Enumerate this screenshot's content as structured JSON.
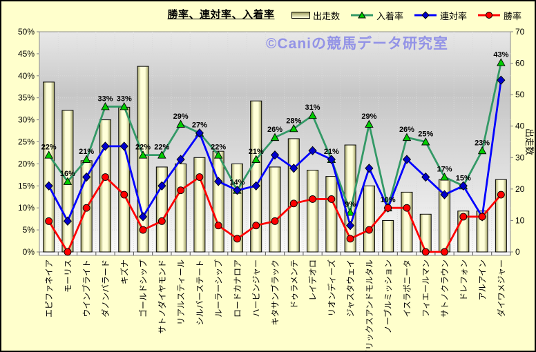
{
  "watermark": "©Caniの競馬データ研究室",
  "colors": {
    "background": "#ffffcc",
    "plot_top": "#e8e8e8",
    "plot_mid": "#c6c6c6",
    "plot_bottom": "#fafafa",
    "bar_fill_light": "#ffffd9",
    "bar_fill_dark": "#9f9f63",
    "bar_border": "#000000",
    "placing_line": "#339966",
    "placing_marker": "#00cc00",
    "quinella_line": "#0000ff",
    "quinella_marker": "#0000cc",
    "win_line": "#ff0000",
    "win_marker": "#ff0000",
    "watermark": "#9393e6"
  },
  "chart_data": {
    "type": "combo-bar-line",
    "title": "勝率、連対率、入着率",
    "categories": [
      "エピファネイア",
      "モーリス",
      "ウインブライト",
      "ダノンバラード",
      "キズナ",
      "ゴールドシップ",
      "サトノダイヤモンド",
      "リアルスティール",
      "シルバーステート",
      "ルーラーシップ",
      "ロードカナロア",
      "ハービンジャー",
      "キタサンブラック",
      "ドゥラメンテ",
      "レイデオロ",
      "リオンディーズ",
      "ジャスタウェイ",
      "ブリックスアンドモルタル",
      "ノーブルミッション",
      "イスラボニータ",
      "フィエールマン",
      "サトノクラウン",
      "ドレフォン",
      "アルアイン",
      "ダイワメジャー"
    ],
    "series": [
      {
        "name": "出走数",
        "id": "starts",
        "chart": "bar",
        "axis": "right",
        "values": [
          54,
          45,
          29,
          42,
          46,
          59,
          27,
          28,
          30,
          32,
          28,
          48,
          27,
          36,
          26,
          24,
          34,
          21,
          10,
          19,
          12,
          23,
          13,
          13,
          23
        ]
      },
      {
        "name": "入着率",
        "id": "placing-rate",
        "chart": "line",
        "marker": "triangle",
        "axis": "left",
        "data_labels": "percent",
        "values": [
          22,
          16,
          21,
          33,
          33,
          22,
          22,
          29,
          27,
          22,
          14,
          21,
          26,
          28,
          31,
          21,
          9,
          29,
          10,
          26,
          25,
          17,
          15,
          23,
          43
        ]
      },
      {
        "name": "連対率",
        "id": "quinella-rate",
        "chart": "line",
        "marker": "diamond",
        "axis": "left",
        "values": [
          15,
          7,
          17,
          24,
          24,
          8,
          15,
          21,
          27,
          16,
          14,
          15,
          22,
          19,
          23,
          21,
          6,
          19,
          10,
          21,
          17,
          13,
          15,
          8,
          39
        ]
      },
      {
        "name": "勝率",
        "id": "win-rate",
        "chart": "line",
        "marker": "circle",
        "axis": "left",
        "values": [
          7,
          0,
          10,
          17,
          13,
          5,
          7,
          14,
          17,
          6,
          3,
          6,
          7,
          11,
          12,
          12,
          3,
          5,
          10,
          10,
          0,
          0,
          8,
          8,
          13
        ]
      }
    ],
    "left_axis": {
      "min": 0,
      "max": 50,
      "step": 5,
      "unit": "%",
      "tick_labels": [
        "0%",
        "5%",
        "10%",
        "15%",
        "20%",
        "25%",
        "30%",
        "35%",
        "40%",
        "45%",
        "50%"
      ]
    },
    "right_axis": {
      "min": 0,
      "max": 70,
      "step": 10,
      "title": "出走数",
      "tick_labels": [
        "0",
        "10",
        "20",
        "30",
        "40",
        "50",
        "60",
        "70"
      ]
    },
    "grid": true,
    "legend_position": "top-right"
  }
}
